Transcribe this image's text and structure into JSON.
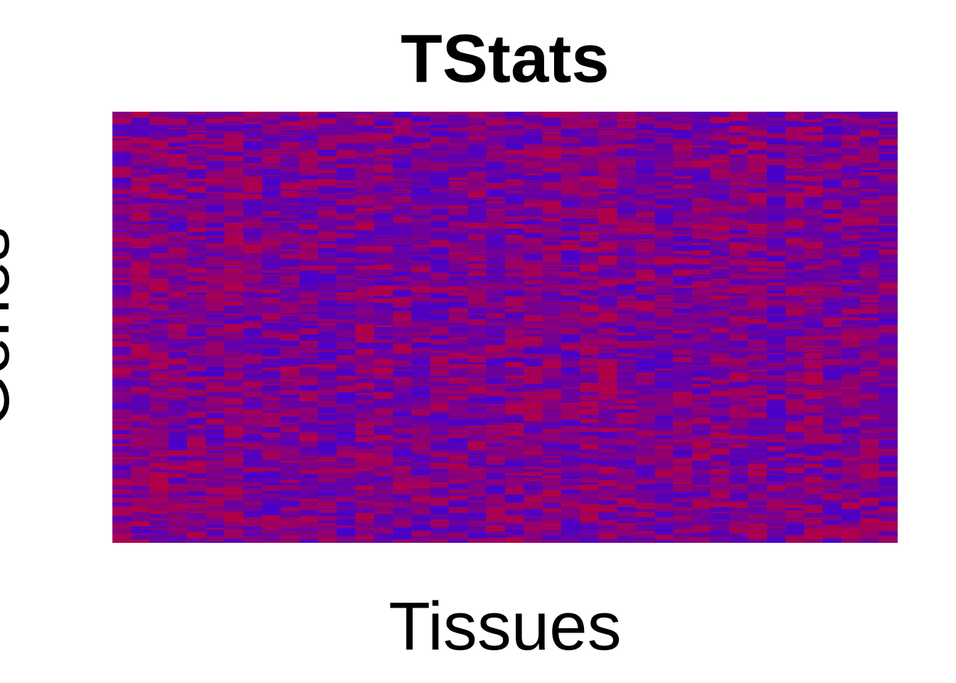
{
  "chart_data": {
    "type": "heatmap",
    "title": "TStats",
    "xlabel": "Tissues",
    "ylabel": "Genes",
    "n_columns": 42,
    "n_rows": 420,
    "color_low": "#4a00c8",
    "color_high": "#b0004a",
    "seed": 7,
    "value_range": [
      -1,
      1
    ],
    "axes_visible": false,
    "grid": false,
    "legend": "none"
  }
}
